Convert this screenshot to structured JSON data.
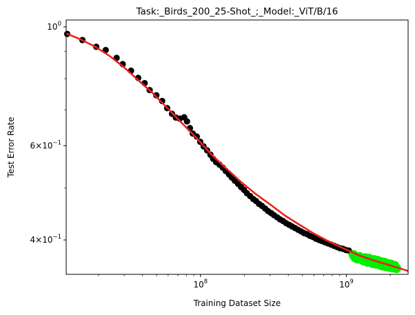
{
  "chart_data": {
    "type": "scatter",
    "title": "Task:_Birds_200_25-Shot_;_Model:_ViT/B/16",
    "xlabel": "Training Dataset Size",
    "ylabel": "Test Error Rate",
    "x_scale": "log",
    "y_scale": "log",
    "xlim": [
      12000000,
      2650000000
    ],
    "ylim": [
      0.345,
      1.03
    ],
    "x_ticks": [
      {
        "value": 100000000,
        "base": "10",
        "exp": "8"
      },
      {
        "value": 1000000000,
        "base": "10",
        "exp": "9"
      }
    ],
    "y_ticks": [
      {
        "value": 1.0,
        "mant": "",
        "base": "10",
        "exp": "0"
      },
      {
        "value": 0.6,
        "mant": "6×",
        "base": "10",
        "exp": "−1"
      },
      {
        "value": 0.4,
        "mant": "4×",
        "base": "10",
        "exp": "−1"
      }
    ],
    "grid": false,
    "legend": false,
    "colors": {
      "train_points": "#000000",
      "extrapolated_points": "#00ee00",
      "fit_line": "#e8221c"
    },
    "series": [
      {
        "kind": "points",
        "color_key": "train_points",
        "x": [
          12200000,
          15500000,
          19300000,
          22400000,
          26600000,
          29300000,
          33400000,
          37400000,
          41400000,
          44800000,
          49800000,
          54600000,
          59100000,
          63800000,
          67800000,
          72100000,
          77300000,
          80800000,
          84600000,
          88500000,
          94300000,
          99600000,
          105000000,
          111000000,
          117000000,
          122000000,
          128000000,
          135000000,
          142000000,
          149000000,
          157000000,
          164000000,
          172000000,
          181000000,
          190000000,
          199000000,
          208000000,
          219000000,
          230000000,
          240000000,
          252000000,
          264000000,
          277000000,
          290000000,
          305000000,
          319000000,
          335000000,
          351000000,
          368000000,
          386000000,
          405000000,
          424000000,
          445000000,
          466000000,
          489000000,
          512000000,
          537000000,
          563000000,
          591000000,
          619000000,
          649000000,
          681000000,
          714000000,
          748000000,
          785000000,
          823000000,
          862000000,
          904000000,
          948000000,
          994000000,
          1040000000
        ],
        "y": [
          0.97,
          0.945,
          0.918,
          0.905,
          0.875,
          0.852,
          0.828,
          0.803,
          0.785,
          0.762,
          0.745,
          0.727,
          0.705,
          0.688,
          0.677,
          0.674,
          0.678,
          0.666,
          0.647,
          0.632,
          0.624,
          0.61,
          0.598,
          0.588,
          0.577,
          0.567,
          0.559,
          0.553,
          0.546,
          0.538,
          0.53,
          0.523,
          0.516,
          0.509,
          0.502,
          0.496,
          0.489,
          0.483,
          0.477,
          0.473,
          0.467,
          0.463,
          0.458,
          0.453,
          0.449,
          0.445,
          0.441,
          0.437,
          0.434,
          0.43,
          0.427,
          0.424,
          0.421,
          0.418,
          0.415,
          0.412,
          0.41,
          0.407,
          0.405,
          0.402,
          0.4,
          0.398,
          0.396,
          0.394,
          0.392,
          0.39,
          0.388,
          0.386,
          0.385,
          0.383,
          0.382
        ]
      },
      {
        "kind": "points",
        "color_key": "extrapolated_points",
        "x": [
          1120000000,
          1150000000,
          1190000000,
          1230000000,
          1270000000,
          1310000000,
          1350000000,
          1390000000,
          1430000000,
          1470000000,
          1510000000,
          1550000000,
          1590000000,
          1630000000,
          1680000000,
          1720000000,
          1770000000,
          1820000000,
          1870000000,
          1920000000,
          1970000000,
          2020000000,
          2080000000,
          2140000000,
          2200000000
        ],
        "y": [
          0.375,
          0.371,
          0.369,
          0.372,
          0.368,
          0.366,
          0.37,
          0.364,
          0.369,
          0.365,
          0.362,
          0.367,
          0.361,
          0.366,
          0.36,
          0.364,
          0.358,
          0.363,
          0.357,
          0.361,
          0.356,
          0.36,
          0.355,
          0.358,
          0.354
        ]
      },
      {
        "kind": "line",
        "color_key": "fit_line",
        "x": [
          12000000,
          15000000,
          19000000,
          24000000,
          30000000,
          38000000,
          47000000,
          60000000,
          75000000,
          95000000,
          120000000,
          150000000,
          190000000,
          240000000,
          300000000,
          380000000,
          470000000,
          600000000,
          750000000,
          950000000,
          1200000000,
          1500000000,
          1900000000,
          2400000000,
          2650000000
        ],
        "y": [
          0.972,
          0.948,
          0.918,
          0.881,
          0.84,
          0.792,
          0.752,
          0.703,
          0.66,
          0.618,
          0.576,
          0.544,
          0.513,
          0.487,
          0.466,
          0.444,
          0.428,
          0.411,
          0.398,
          0.386,
          0.375,
          0.367,
          0.36,
          0.353,
          0.35
        ]
      }
    ]
  }
}
